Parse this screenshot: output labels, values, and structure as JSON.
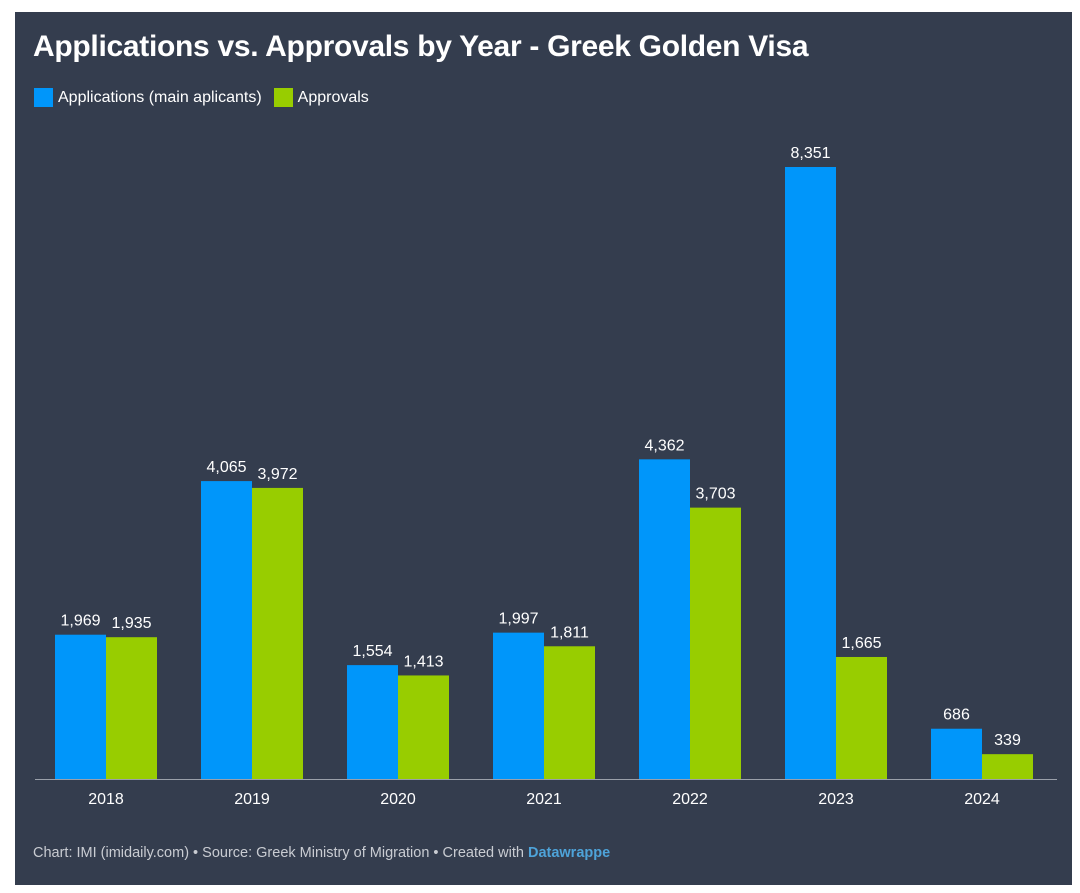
{
  "chart_data": {
    "type": "bar",
    "title": "Applications vs. Approvals by Year - Greek Golden Visa",
    "categories": [
      "2018",
      "2019",
      "2020",
      "2021",
      "2022",
      "2023",
      "2024"
    ],
    "series": [
      {
        "name": "Applications (main aplicants)",
        "color": "#0096fa",
        "values": [
          1969,
          4065,
          1554,
          1997,
          4362,
          8351,
          686
        ]
      },
      {
        "name": "Approvals",
        "color": "#98cd00",
        "values": [
          1935,
          3972,
          1413,
          1811,
          3703,
          1665,
          339
        ]
      }
    ],
    "xlabel": "",
    "ylabel": "",
    "ylim": [
      0,
      8351
    ],
    "grid": false,
    "legend_position": "top-left",
    "value_labels": "above-bars"
  },
  "footer": {
    "text": "Chart: IMI (imidaily.com) • Source: Greek Ministry of Migration • Created with",
    "brand": "Datawrappe"
  },
  "colors": {
    "background": "#343d4e",
    "axis": "#9aa0aa"
  }
}
